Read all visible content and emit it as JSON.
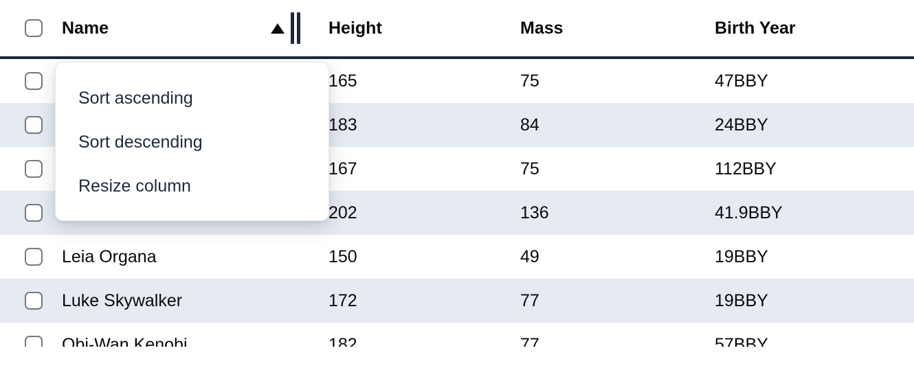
{
  "table": {
    "columns": [
      {
        "key": "name",
        "label": "Name"
      },
      {
        "key": "height",
        "label": "Height"
      },
      {
        "key": "mass",
        "label": "Mass"
      },
      {
        "key": "birth_year",
        "label": "Birth Year"
      }
    ],
    "sort": {
      "column": "Name",
      "direction": "ascending",
      "indicator": "triangle-up"
    },
    "rows": [
      {
        "name": "",
        "height": "165",
        "mass": "75",
        "birth_year": "47BBY"
      },
      {
        "name": "",
        "height": "183",
        "mass": "84",
        "birth_year": "24BBY"
      },
      {
        "name": "",
        "height": "167",
        "mass": "75",
        "birth_year": "112BBY"
      },
      {
        "name": "",
        "height": "202",
        "mass": "136",
        "birth_year": "41.9BBY"
      },
      {
        "name": "Leia Organa",
        "height": "150",
        "mass": "49",
        "birth_year": "19BBY"
      },
      {
        "name": "Luke Skywalker",
        "height": "172",
        "mass": "77",
        "birth_year": "19BBY"
      },
      {
        "name": "Obi-Wan Kenobi",
        "height": "182",
        "mass": "77",
        "birth_year": "57BBY"
      }
    ]
  },
  "context_menu": {
    "items": [
      {
        "label": "Sort ascending"
      },
      {
        "label": "Sort descending"
      },
      {
        "label": "Resize column"
      }
    ]
  },
  "colors": {
    "header_border": "#1e293b",
    "row_stripe": "#e6eaf2",
    "menu_text": "#1e293b",
    "resize_handle": "#1e293b",
    "checkbox_border": "#75797f"
  }
}
